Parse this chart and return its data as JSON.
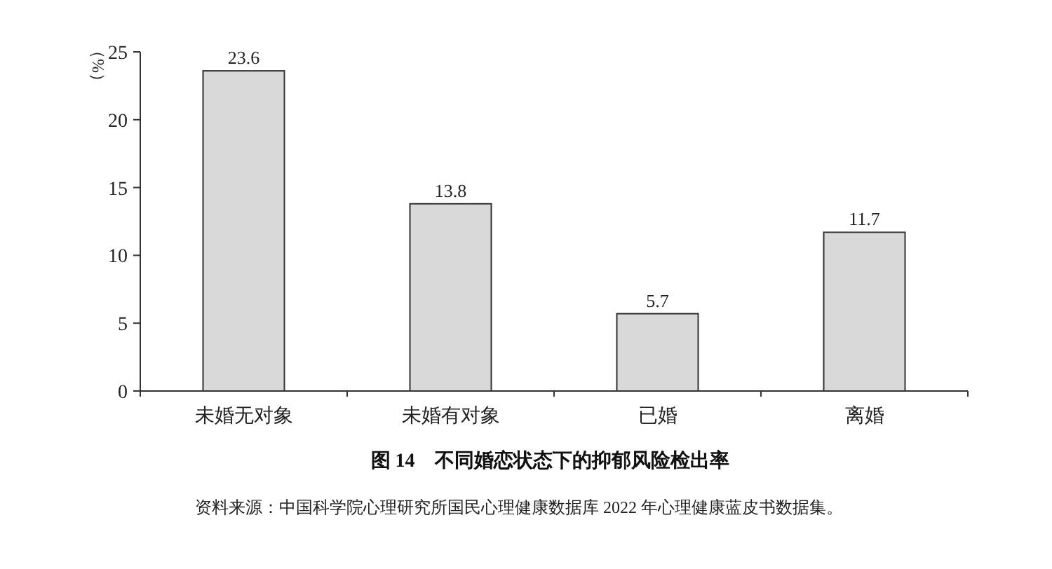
{
  "chart_data": {
    "type": "bar",
    "title": "图 14　不同婚恋状态下的抑郁风险检出率",
    "ylabel": "（%）",
    "annotations": [
      "资料来源：中国科学院心理研究所国民心理健康数据库 2022 年心理健康蓝皮书数据集。"
    ],
    "categories": [
      "未婚无对象",
      "未婚有对象",
      "已婚",
      "离婚"
    ],
    "values": [
      23.6,
      13.8,
      5.7,
      11.7
    ],
    "color": "#d9d9d9",
    "ylim": [
      0,
      25
    ],
    "yticks": [
      0,
      5,
      10,
      15,
      20,
      25
    ],
    "data_labels": true
  }
}
